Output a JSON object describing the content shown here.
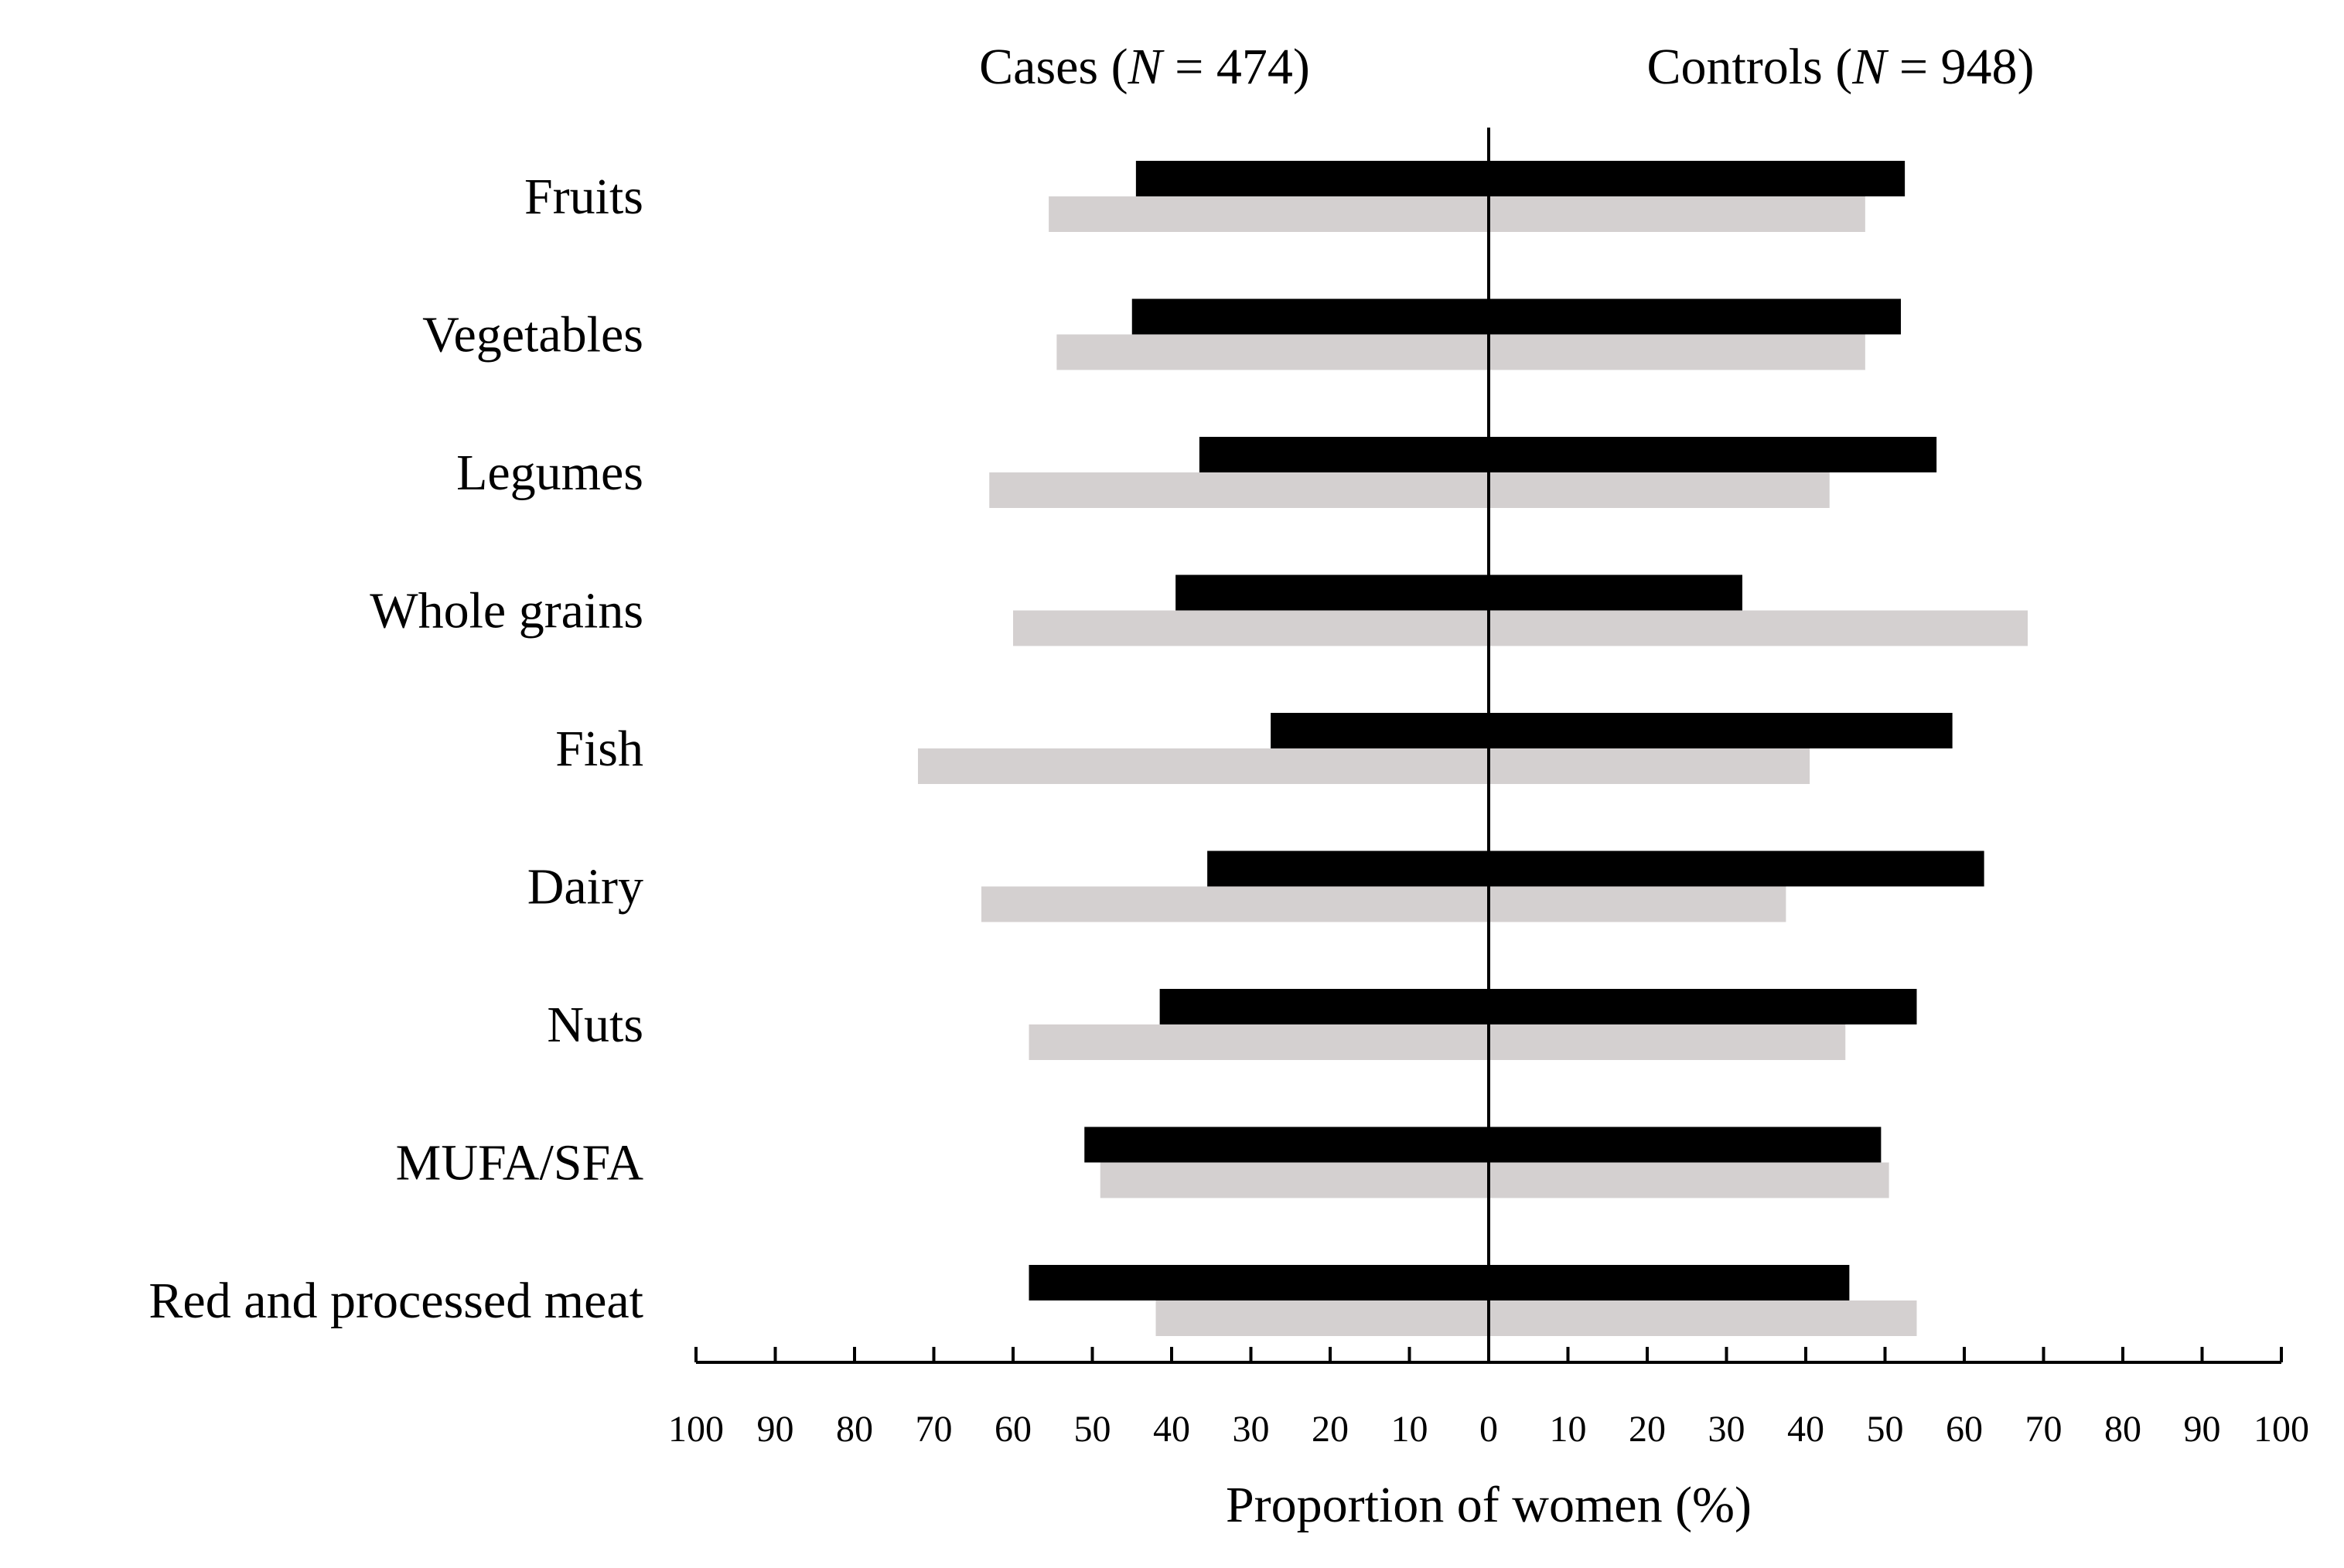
{
  "chart_data": {
    "type": "bar",
    "orientation": "horizontal-diverging",
    "header_left": {
      "label": "Cases",
      "n_symbol": "N",
      "n_text": " = 474)"
    },
    "header_right": {
      "label": "Controls",
      "n_symbol": "N",
      "n_text": " = 948)"
    },
    "xlabel": "Proportion of women (%)",
    "xlim": [
      -100,
      100
    ],
    "tick_values": [
      -100,
      -90,
      -80,
      -70,
      -60,
      -50,
      -40,
      -30,
      -20,
      -10,
      0,
      10,
      20,
      30,
      40,
      50,
      60,
      70,
      80,
      90,
      100
    ],
    "tick_labels": [
      "100",
      "90",
      "80",
      "70",
      "60",
      "50",
      "40",
      "30",
      "20",
      "10",
      "0",
      "10",
      "20",
      "30",
      "40",
      "50",
      "60",
      "70",
      "80",
      "90",
      "100"
    ],
    "categories": [
      "Fruits",
      "Vegetables",
      "Legumes",
      "Whole grains",
      "Fish",
      "Dairy",
      "Nuts",
      "MUFA/SFA",
      "Red and processed meat"
    ],
    "series": [
      {
        "name": "Black bars",
        "color": "#000000",
        "cases": [
          44.5,
          45,
          36.5,
          39.5,
          27.5,
          35.5,
          41.5,
          51,
          58
        ],
        "controls": [
          52.5,
          52,
          56.5,
          32,
          58.5,
          62.5,
          54,
          49.5,
          45.5
        ]
      },
      {
        "name": "Grey bars",
        "color": "#d4d0d0",
        "cases": [
          55.5,
          54.5,
          63,
          60,
          72,
          64,
          58,
          49,
          42
        ],
        "controls": [
          47.5,
          47.5,
          43,
          68,
          40.5,
          37.5,
          45,
          50.5,
          54
        ]
      }
    ]
  }
}
